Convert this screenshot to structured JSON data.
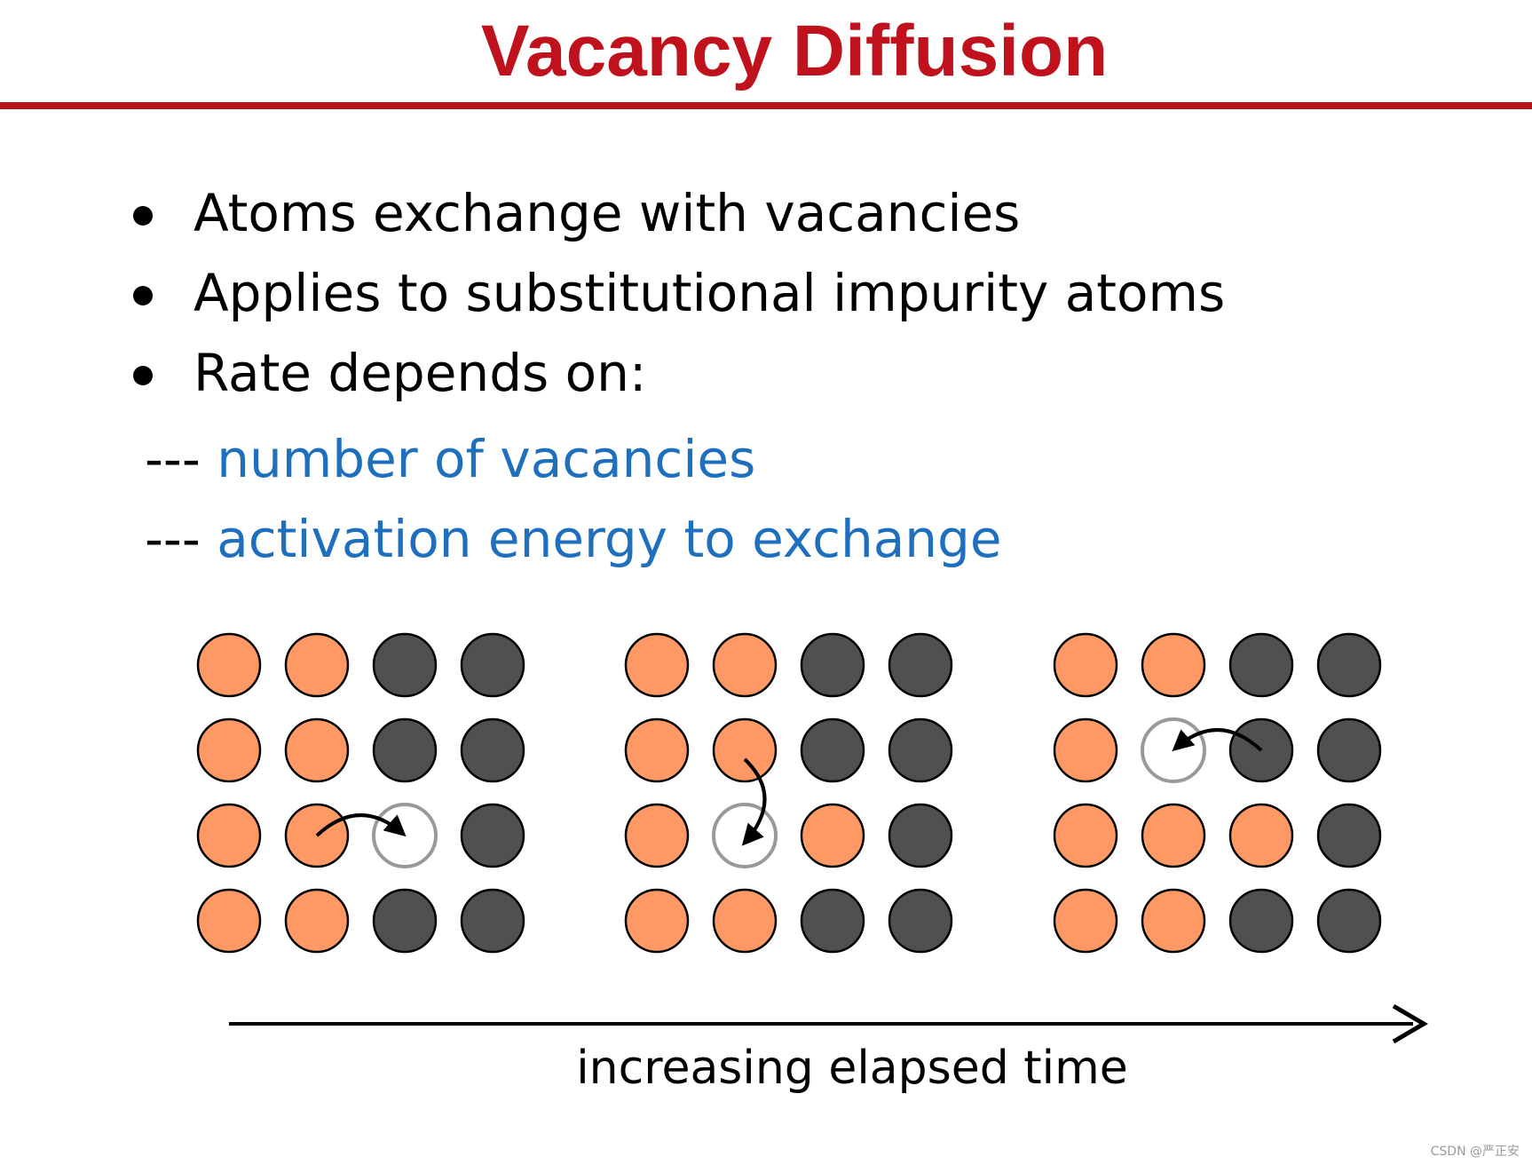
{
  "title": "Vacancy Diffusion",
  "bullets": [
    "Atoms exchange with vacancies",
    "Applies to substitutional impurity atoms",
    "Rate depends on:"
  ],
  "sub_items": [
    {
      "prefix": "---",
      "text": "number of vacancies"
    },
    {
      "prefix": "---",
      "text": "activation energy to exchange"
    }
  ],
  "colors": {
    "title": "#c0121c",
    "rule": "#b5121b",
    "sub_item_text": "#1f6fbf",
    "impurity_atom": "#fe9966",
    "host_atom": "#505050",
    "vacancy_outline": "#999999"
  },
  "panels": [
    {
      "grid": [
        [
          "impurity",
          "impurity",
          "host",
          "host"
        ],
        [
          "impurity",
          "impurity",
          "host",
          "host"
        ],
        [
          "impurity",
          "impurity",
          "vacancy",
          "host"
        ],
        [
          "impurity",
          "impurity",
          "host",
          "host"
        ]
      ],
      "jump": {
        "from": [
          2,
          1
        ],
        "to": [
          2,
          2
        ]
      }
    },
    {
      "grid": [
        [
          "impurity",
          "impurity",
          "host",
          "host"
        ],
        [
          "impurity",
          "impurity",
          "host",
          "host"
        ],
        [
          "impurity",
          "vacancy",
          "impurity",
          "host"
        ],
        [
          "impurity",
          "impurity",
          "host",
          "host"
        ]
      ],
      "jump": {
        "from": [
          1,
          1
        ],
        "to": [
          2,
          1
        ]
      }
    },
    {
      "grid": [
        [
          "impurity",
          "impurity",
          "host",
          "host"
        ],
        [
          "impurity",
          "vacancy",
          "host",
          "host"
        ],
        [
          "impurity",
          "impurity",
          "impurity",
          "host"
        ],
        [
          "impurity",
          "impurity",
          "host",
          "host"
        ]
      ],
      "jump": {
        "from": [
          1,
          2
        ],
        "to": [
          1,
          1
        ]
      }
    }
  ],
  "time_axis_label": "increasing elapsed time",
  "watermark": "CSDN @严正安"
}
